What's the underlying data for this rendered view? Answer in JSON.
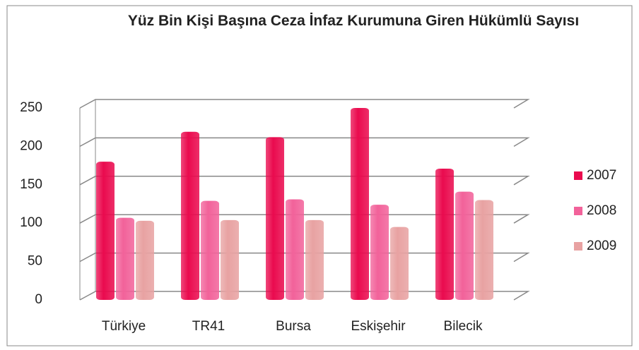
{
  "chart_data": {
    "type": "bar",
    "title": "Yüz Bin Kişi Başına Ceza İnfaz Kurumuna Giren Hükümlü Sayısı",
    "categories": [
      "Türkiye",
      "TR41",
      "Bursa",
      "Eskişehir",
      "Bilecik"
    ],
    "series": [
      {
        "name": "2007",
        "color": "#ea0a4e",
        "values": [
          180,
          219,
          212,
          250,
          171
        ]
      },
      {
        "name": "2008",
        "color": "#f2629a",
        "values": [
          107,
          129,
          131,
          124,
          141
        ]
      },
      {
        "name": "2009",
        "color": "#e8a2a2",
        "values": [
          103,
          104,
          104,
          95,
          130
        ]
      }
    ],
    "ylim": [
      0,
      250
    ],
    "yticks": [
      0,
      50,
      100,
      150,
      200,
      250
    ],
    "grid": true,
    "legend": "right"
  }
}
